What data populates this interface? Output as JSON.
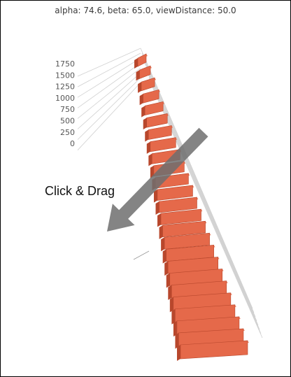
{
  "caption": "alpha: 74.6, beta: 65.0, viewDistance: 50.0",
  "hint_text": "Click & Drag",
  "hint_icon": "diagonal-drag-arrow",
  "colors": {
    "bar_front": "#e5694a",
    "bar_side": "#b8472c",
    "bar_top": "#f08a6c",
    "grid": "#d0d0d0",
    "arrow": "#6e6e6e"
  },
  "chart_data": {
    "type": "bar",
    "view": {
      "alpha": 74.6,
      "beta": 65.0,
      "viewDistance": 50.0
    },
    "yticks": [
      "1750",
      "1500",
      "1250",
      "1000",
      "750",
      "500",
      "250",
      "0"
    ],
    "ylim": [
      0,
      1750
    ],
    "series": [
      {
        "values": [
          1750,
          1000,
          700,
          600,
          500,
          450,
          420,
          400,
          380,
          360,
          340,
          330,
          320,
          310,
          300,
          290,
          280,
          270,
          260,
          250,
          240,
          230,
          220,
          210,
          200
        ]
      }
    ]
  }
}
